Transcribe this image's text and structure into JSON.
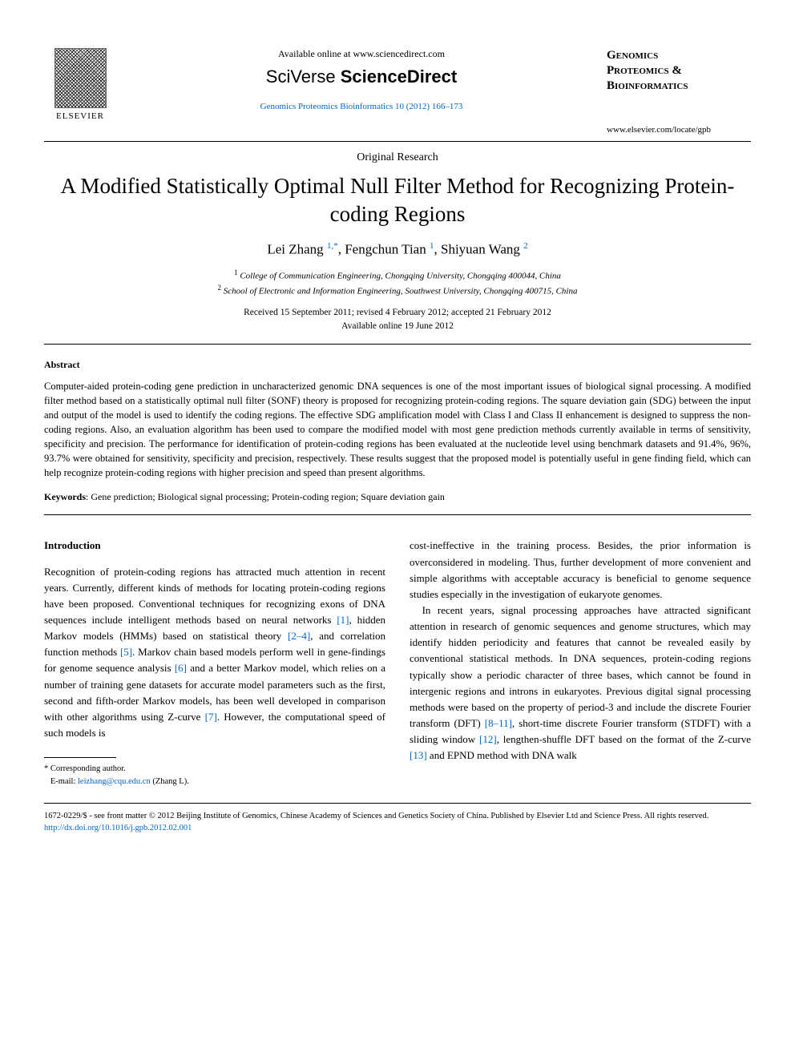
{
  "header": {
    "available_text": "Available online at www.sciencedirect.com",
    "platform_prefix": "SciVerse ",
    "platform_name": "ScienceDirect",
    "citation": "Genomics Proteomics Bioinformatics 10 (2012) 166–173",
    "publisher": "ELSEVIER",
    "journal_name_line1": "Genomics",
    "journal_name_line2": "Proteomics &",
    "journal_name_line3": "Bioinformatics",
    "journal_url": "www.elsevier.com/locate/gpb"
  },
  "article": {
    "type": "Original Research",
    "title": "A Modified Statistically Optimal Null Filter Method for Recognizing Protein-coding Regions",
    "authors": [
      {
        "name": "Lei Zhang",
        "aff": "1",
        "corr": true
      },
      {
        "name": "Fengchun Tian",
        "aff": "1",
        "corr": false
      },
      {
        "name": "Shiyuan Wang",
        "aff": "2",
        "corr": false
      }
    ],
    "affiliations": [
      {
        "num": "1",
        "text": "College of Communication Engineering, Chongqing University, Chongqing 400044, China"
      },
      {
        "num": "2",
        "text": "School of Electronic and Information Engineering, Southwest University, Chongqing 400715, China"
      }
    ],
    "dates_line1": "Received 15 September 2011; revised 4 February 2012; accepted 21 February 2012",
    "dates_line2": "Available online 19 June 2012"
  },
  "abstract": {
    "heading": "Abstract",
    "text": "Computer-aided protein-coding gene prediction in uncharacterized genomic DNA sequences is one of the most important issues of biological signal processing. A modified filter method based on a statistically optimal null filter (SONF) theory is proposed for recognizing protein-coding regions. The square deviation gain (SDG) between the input and output of the model is used to identify the coding regions. The effective SDG amplification model with Class I and Class II enhancement is designed to suppress the non-coding regions. Also, an evaluation algorithm has been used to compare the modified model with most gene prediction methods currently available in terms of sensitivity, specificity and precision. The performance for identification of protein-coding regions has been evaluated at the nucleotide level using benchmark datasets and 91.4%, 96%, 93.7% were obtained for sensitivity, specificity and precision, respectively. These results suggest that the proposed model is potentially useful in gene finding field, which can help recognize protein-coding regions with higher precision and speed than present algorithms."
  },
  "keywords": {
    "label": "Keywords",
    "text": "Gene prediction; Biological signal processing; Protein-coding region; Square deviation gain"
  },
  "body": {
    "intro_heading": "Introduction",
    "col1_p1_a": "Recognition of protein-coding regions has attracted much attention in recent years. Currently, different kinds of methods for locating protein-coding regions have been proposed. Conventional techniques for recognizing exons of DNA sequences include intelligent methods based on neural networks ",
    "ref1": "[1]",
    "col1_p1_b": ", hidden Markov models (HMMs) based on statistical theory ",
    "ref2": "[2–4]",
    "col1_p1_c": ", and correlation function methods ",
    "ref3": "[5]",
    "col1_p1_d": ". Markov chain based models perform well in gene-findings for genome sequence analysis ",
    "ref4": "[6]",
    "col1_p1_e": " and a better Markov model, which relies on a number of training gene datasets for accurate model parameters such as the first, second and fifth-order Markov models, has been well developed in comparison with other algorithms using Z-curve ",
    "ref5": "[7]",
    "col1_p1_f": ". However, the computational speed of such models is",
    "col2_p1": "cost-ineffective in the training process. Besides, the prior information is overconsidered in modeling. Thus, further development of more convenient and simple algorithms with acceptable accuracy is beneficial to genome sequence studies especially in the investigation of eukaryote genomes.",
    "col2_p2_a": "In recent years, signal processing approaches have attracted significant attention in research of genomic sequences and genome structures, which may identify hidden periodicity and features that cannot be revealed easily by conventional statistical methods. In DNA sequences, protein-coding regions typically show a periodic character of three bases, which cannot be found in intergenic regions and introns in eukaryotes. Previous digital signal processing methods were based on the property of period-3 and include the discrete Fourier transform (DFT) ",
    "ref6": "[8–11]",
    "col2_p2_b": ", short-time discrete Fourier transform (STDFT) with a sliding window ",
    "ref7": "[12]",
    "col2_p2_c": ", lengthen-shuffle DFT based on the format of the Z-curve ",
    "ref8": "[13]",
    "col2_p2_d": " and EPND method with DNA walk"
  },
  "footnote": {
    "corresponding": "* Corresponding author.",
    "email_label": "E-mail: ",
    "email": "leizhang@cqu.edu.cn",
    "email_suffix": " (Zhang L)."
  },
  "copyright": {
    "text": "1672-0229/$ - see front matter © 2012 Beijing Institute of Genomics, Chinese Academy of Sciences and Genetics Society of China. Published by Elsevier Ltd and Science Press. All rights reserved.",
    "doi": "http://dx.doi.org/10.1016/j.gpb.2012.02.001"
  }
}
